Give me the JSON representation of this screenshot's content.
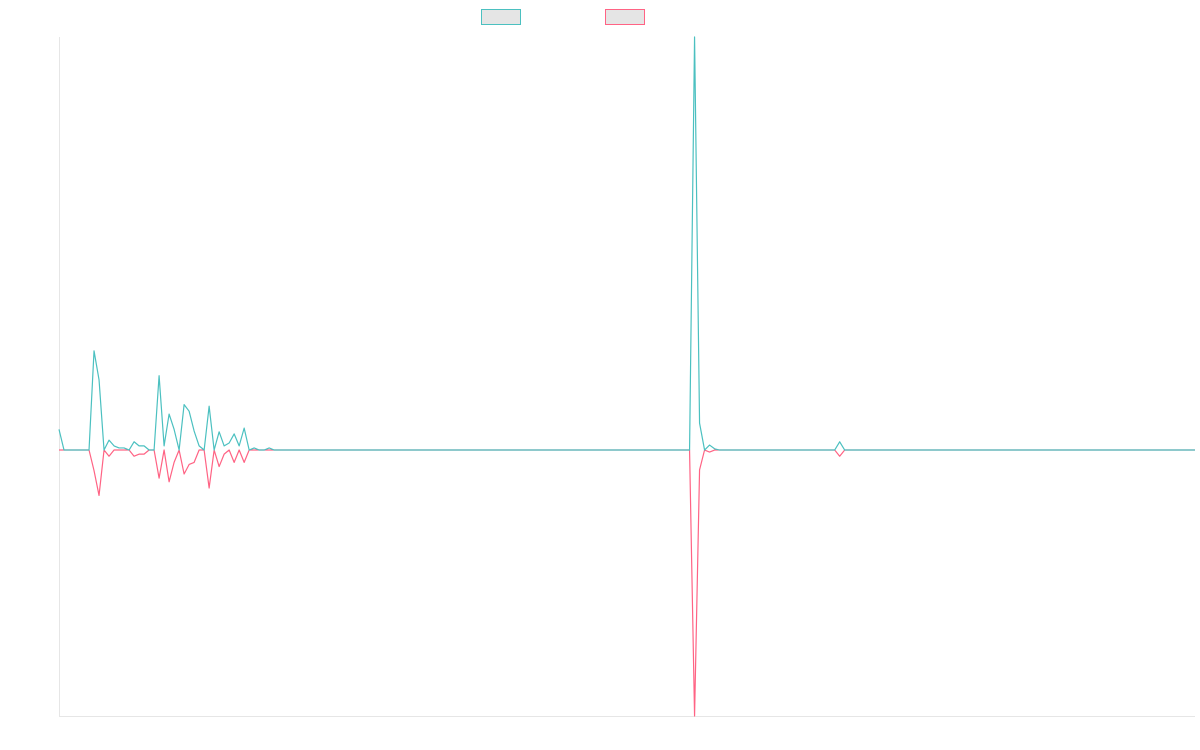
{
  "chart_data": {
    "type": "line",
    "title": "",
    "xlabel": "",
    "ylabel": "",
    "ylim": [
      -64.4,
      100
    ],
    "grid": false,
    "legend_placement": "top",
    "series": [
      {
        "label": "",
        "color": "#4bc0c0",
        "values": [
          5,
          0,
          0,
          0,
          0,
          0,
          0,
          24,
          17,
          0,
          2.4,
          1,
          0.5,
          0.5,
          0,
          2,
          1,
          1,
          0,
          0,
          18,
          1,
          8.7,
          5,
          0,
          11,
          9.4,
          4.6,
          1,
          0,
          10.6,
          0,
          4.4,
          1,
          1.7,
          3.9,
          1,
          5.3,
          0,
          0.5,
          0,
          0,
          0.5,
          0,
          0,
          0,
          0,
          0,
          0,
          0,
          0,
          0,
          0,
          0,
          0,
          0,
          0,
          0,
          0,
          0,
          0,
          0,
          0,
          0,
          0,
          0,
          0,
          0,
          0,
          0,
          0,
          0,
          0,
          0,
          0,
          0,
          0,
          0,
          0,
          0,
          0,
          0,
          0,
          0,
          0,
          0,
          0,
          0,
          0,
          0,
          0,
          0,
          0,
          0,
          0,
          0,
          0,
          0,
          0,
          0,
          0,
          0,
          0,
          0,
          0,
          0,
          0,
          0,
          0,
          0,
          0,
          0,
          0,
          0,
          0,
          0,
          0,
          0,
          0,
          0,
          0,
          0,
          0,
          0,
          0,
          0,
          0,
          100,
          6.5,
          0,
          1.2,
          0.3,
          0,
          0,
          0,
          0,
          0,
          0,
          0,
          0,
          0,
          0,
          0,
          0,
          0,
          0,
          0,
          0,
          0,
          0,
          0,
          0,
          0,
          0,
          0,
          0,
          2,
          0,
          0,
          0,
          0,
          0,
          0,
          0,
          0,
          0,
          0,
          0,
          0,
          0,
          0,
          0,
          0,
          0,
          0,
          0,
          0,
          0,
          0,
          0,
          0,
          0,
          0,
          0,
          0,
          0,
          0,
          0,
          0,
          0,
          0,
          0,
          0,
          0,
          0,
          0,
          0,
          0,
          0,
          0,
          0,
          0,
          0,
          0,
          0,
          0,
          0,
          0,
          0,
          0,
          0,
          0,
          0,
          0,
          0,
          0,
          0,
          0,
          0,
          0,
          0,
          0,
          0,
          0,
          0,
          0,
          0,
          0
        ]
      },
      {
        "label": "",
        "color": "#ff6384",
        "values": [
          0,
          0,
          0,
          0,
          0,
          0,
          0,
          -5,
          -11,
          0,
          -1.5,
          0,
          0,
          0,
          0,
          -1.5,
          -1,
          -1,
          0,
          0,
          -6.8,
          0,
          -7.7,
          -3,
          0,
          -5.8,
          -3.5,
          -3,
          0,
          0,
          -9.2,
          0,
          -4,
          -1,
          0,
          -3,
          0,
          -3,
          0,
          0,
          0,
          0,
          0,
          0,
          0,
          0,
          0,
          0,
          0,
          0,
          0,
          0,
          0,
          0,
          0,
          0,
          0,
          0,
          0,
          0,
          0,
          0,
          0,
          0,
          0,
          0,
          0,
          0,
          0,
          0,
          0,
          0,
          0,
          0,
          0,
          0,
          0,
          0,
          0,
          0,
          0,
          0,
          0,
          0,
          0,
          0,
          0,
          0,
          0,
          0,
          0,
          0,
          0,
          0,
          0,
          0,
          0,
          0,
          0,
          0,
          0,
          0,
          0,
          0,
          0,
          0,
          0,
          0,
          0,
          0,
          0,
          0,
          0,
          0,
          0,
          0,
          0,
          0,
          0,
          0,
          0,
          0,
          0,
          0,
          0,
          0,
          0,
          -64.4,
          -4.8,
          0,
          -0.5,
          0,
          0,
          0,
          0,
          0,
          0,
          0,
          0,
          0,
          0,
          0,
          0,
          0,
          0,
          0,
          0,
          0,
          0,
          0,
          0,
          0,
          0,
          0,
          0,
          0,
          -1.5,
          0,
          0,
          0,
          0,
          0,
          0,
          0,
          0,
          0,
          0,
          0,
          0,
          0,
          0,
          0,
          0,
          0,
          0,
          0,
          0,
          0,
          0,
          0,
          0,
          0,
          0,
          0,
          0,
          0,
          0,
          0,
          0,
          0,
          0,
          0,
          0,
          0,
          0,
          0,
          0,
          0,
          0,
          0,
          0,
          0,
          0,
          0,
          0,
          0,
          0,
          0,
          0,
          0,
          0,
          0,
          0,
          0,
          0,
          0,
          0,
          0,
          0,
          0,
          0,
          0,
          0,
          0,
          0,
          0,
          0,
          0
        ]
      }
    ]
  }
}
